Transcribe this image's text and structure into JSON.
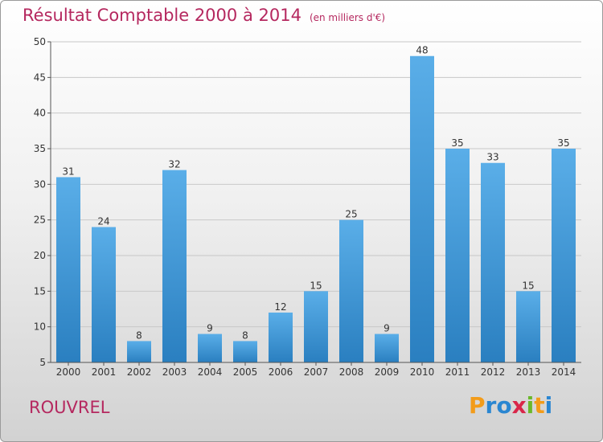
{
  "chart_data": {
    "type": "bar",
    "title": "Résultat Comptable 2000 à 2014",
    "subtitle": "(en milliers d'€)",
    "categories": [
      "2000",
      "2001",
      "2002",
      "2003",
      "2004",
      "2005",
      "2006",
      "2007",
      "2008",
      "2009",
      "2010",
      "2011",
      "2012",
      "2013",
      "2014"
    ],
    "values": [
      31,
      24,
      8,
      32,
      9,
      8,
      12,
      15,
      25,
      9,
      48,
      35,
      33,
      15,
      35
    ],
    "ylim": [
      5,
      50
    ],
    "yticks": [
      5,
      10,
      15,
      20,
      25,
      30,
      35,
      40,
      45,
      50
    ],
    "grid": true,
    "bar_color_top": "#5aaee8",
    "bar_color_bottom": "#2a7fc0"
  },
  "footer": {
    "commune": "ROUVREL",
    "logo": {
      "letters": [
        "P",
        "r",
        "o",
        "x",
        "i",
        "t",
        "i"
      ],
      "colors": [
        "#f39c1a",
        "#2a86d1",
        "#2a86d1",
        "#d9264a",
        "#6ab82a",
        "#f39c1a",
        "#2a86d1"
      ]
    }
  }
}
